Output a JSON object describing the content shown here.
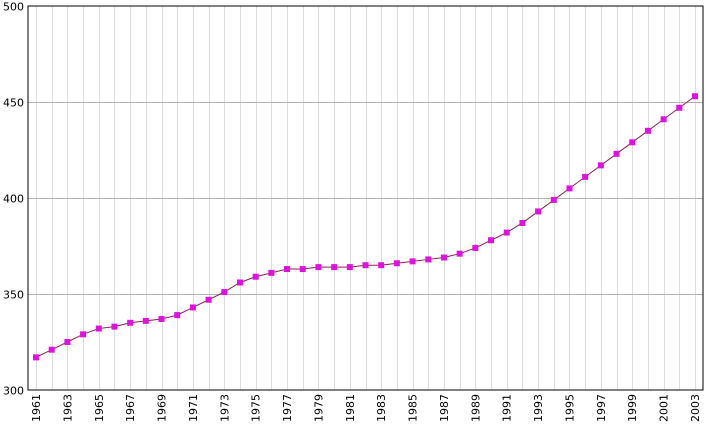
{
  "chart_data": {
    "type": "line",
    "title": "",
    "xlabel": "",
    "ylabel": "",
    "x": [
      1961,
      1962,
      1963,
      1964,
      1965,
      1966,
      1967,
      1968,
      1969,
      1970,
      1971,
      1972,
      1973,
      1974,
      1975,
      1976,
      1977,
      1978,
      1979,
      1980,
      1981,
      1982,
      1983,
      1984,
      1985,
      1986,
      1987,
      1988,
      1989,
      1990,
      1991,
      1992,
      1993,
      1994,
      1995,
      1996,
      1997,
      1998,
      1999,
      2000,
      2001,
      2002,
      2003
    ],
    "series": [
      {
        "name": "",
        "color": "#e010e0",
        "values": [
          317,
          321,
          325,
          329,
          332,
          333,
          335,
          336,
          337,
          339,
          343,
          347,
          351,
          356,
          359,
          361,
          363,
          363,
          364,
          364,
          364,
          365,
          365,
          366,
          367,
          368,
          369,
          371,
          374,
          378,
          382,
          387,
          393,
          399,
          405,
          411,
          417,
          423,
          429,
          435,
          441,
          447,
          453
        ]
      }
    ],
    "x_tick_labels": [
      "1961",
      "1963",
      "1965",
      "1967",
      "1969",
      "1971",
      "1973",
      "1975",
      "1977",
      "1979",
      "1981",
      "1983",
      "1985",
      "1987",
      "1989",
      "1991",
      "1993",
      "1995",
      "1997",
      "1999",
      "2001",
      "2003"
    ],
    "y_tick_labels": [
      "300",
      "350",
      "400",
      "450",
      "500"
    ],
    "ylim": [
      300,
      500
    ],
    "xlim": [
      1961,
      2003
    ],
    "grid": true,
    "marker": "square",
    "line_color": "#8b2252"
  }
}
